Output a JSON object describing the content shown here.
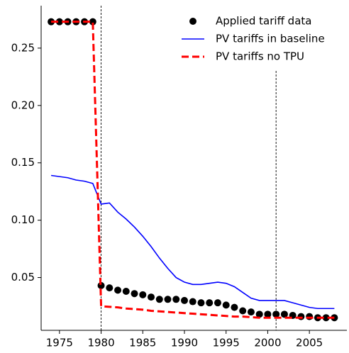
{
  "chart_data": {
    "type": "line",
    "x": [
      1974,
      1975,
      1976,
      1977,
      1978,
      1979,
      1980,
      1981,
      1982,
      1983,
      1984,
      1985,
      1986,
      1987,
      1988,
      1989,
      1990,
      1991,
      1992,
      1993,
      1994,
      1995,
      1996,
      1997,
      1998,
      1999,
      2000,
      2001,
      2002,
      2003,
      2004,
      2005,
      2006,
      2007,
      2008
    ],
    "series": [
      {
        "name": "Applied tariff data",
        "color": "#000000",
        "style": "scatter",
        "values": [
          0.273,
          0.273,
          0.273,
          0.273,
          0.273,
          0.273,
          0.043,
          0.041,
          0.039,
          0.038,
          0.036,
          0.035,
          0.033,
          0.031,
          0.031,
          0.031,
          0.03,
          0.029,
          0.028,
          0.028,
          0.028,
          0.026,
          0.024,
          0.021,
          0.02,
          0.018,
          0.018,
          0.018,
          0.018,
          0.017,
          0.016,
          0.016,
          0.015,
          0.015,
          0.015
        ]
      },
      {
        "name": "PV tariffs in baseline",
        "color": "#0000ff",
        "style": "solid",
        "values": [
          0.139,
          0.138,
          0.137,
          0.135,
          0.134,
          0.132,
          0.114,
          0.115,
          0.107,
          0.101,
          0.094,
          0.086,
          0.077,
          0.067,
          0.058,
          0.05,
          0.046,
          0.044,
          0.044,
          0.045,
          0.046,
          0.045,
          0.042,
          0.037,
          0.032,
          0.03,
          0.03,
          0.03,
          0.03,
          0.028,
          0.026,
          0.024,
          0.023,
          0.023,
          0.023
        ]
      },
      {
        "name": "PV tariffs no TPU",
        "color": "#ff0000",
        "style": "dashed",
        "values": [
          0.273,
          0.273,
          0.273,
          0.273,
          0.273,
          0.273,
          0.025,
          0.0245,
          0.024,
          0.023,
          0.0225,
          0.022,
          0.021,
          0.0205,
          0.02,
          0.0195,
          0.019,
          0.0185,
          0.018,
          0.0175,
          0.017,
          0.0165,
          0.016,
          0.016,
          0.0155,
          0.015,
          0.015,
          0.015,
          0.015,
          0.015,
          0.015,
          0.015,
          0.015,
          0.015,
          0.015
        ]
      }
    ],
    "vlines": [
      1980,
      2001
    ],
    "xlim": [
      1972.8,
      2009.5
    ],
    "ylim": [
      0.004,
      0.287
    ],
    "xticks": [
      1975,
      1980,
      1985,
      1990,
      1995,
      2000,
      2005
    ],
    "yticks": [
      0.05,
      {
        "value": 0.1,
        "label": "0.10"
      },
      0.15,
      {
        "value": 0.2,
        "label": "0.20"
      },
      0.25
    ],
    "legend": "upper right"
  }
}
